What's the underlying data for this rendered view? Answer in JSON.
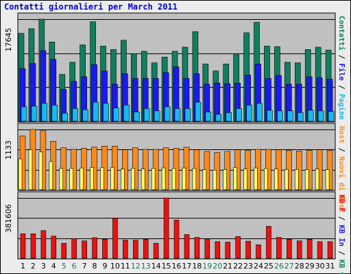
{
  "title": "Contatti giornalieri per March 2011",
  "chart_data": {
    "type": "bar",
    "categories": [
      "1",
      "2",
      "3",
      "4",
      "5",
      "6",
      "7",
      "8",
      "9",
      "10",
      "11",
      "12",
      "13",
      "14",
      "15",
      "16",
      "17",
      "18",
      "19",
      "20",
      "21",
      "22",
      "23",
      "24",
      "25",
      "26",
      "27",
      "28",
      "29",
      "30",
      "31"
    ],
    "weekend_days": [
      "5",
      "6",
      "12",
      "13",
      "19",
      "20",
      "26",
      "27"
    ],
    "colors": {
      "contatti": "#0f7f5f",
      "file": "#1a1aee",
      "pagine": "#19b8ef",
      "host": "#ff8a1a",
      "host_inner": "#ffff66",
      "kb": "#ee1111",
      "weekday_label": "#000000",
      "weekend_label": "#11774f",
      "slash": "#000000"
    },
    "panels": [
      {
        "id": "traffic",
        "ymax_label": "17645",
        "ymax": 17645,
        "right_labels": [
          {
            "text": "Contatti",
            "color": "#0f7f5f"
          },
          {
            "text": " / ",
            "color": "#000000"
          },
          {
            "text": "File",
            "color": "#1a1aee"
          },
          {
            "text": " / ",
            "color": "#000000"
          },
          {
            "text": "Pagine",
            "color": "#19b8ef"
          }
        ],
        "series": [
          {
            "name": "Contatti",
            "values": [
              15200,
              16000,
              17645,
              13700,
              8100,
              10200,
              13200,
              17200,
              13000,
              12400,
              14000,
              11700,
              12100,
              10100,
              11100,
              12100,
              12800,
              15500,
              9900,
              8700,
              9900,
              11500,
              15300,
              17100,
              13000,
              12900,
              10200,
              10100,
              12400,
              12800,
              12300
            ]
          },
          {
            "name": "File",
            "values": [
              9100,
              10000,
              12200,
              10700,
              5500,
              6900,
              7700,
              9800,
              8700,
              6400,
              8200,
              7400,
              7400,
              7400,
              8400,
              9400,
              7400,
              8200,
              6400,
              6600,
              6500,
              6600,
              8000,
              9900,
              7400,
              7900,
              6400,
              6400,
              7700,
              7500,
              7300
            ]
          },
          {
            "name": "Pagine",
            "values": [
              2500,
              2600,
              3100,
              2800,
              1400,
              2200,
              2000,
              3300,
              3100,
              2300,
              2800,
              1600,
              2200,
              1800,
              2500,
              2200,
              2200,
              3300,
              1600,
              1200,
              1500,
              2200,
              2800,
              3100,
              1900,
              1800,
              1800,
              1500,
              1900,
              1800,
              1700
            ]
          }
        ]
      },
      {
        "id": "host",
        "ymax_label": "1133",
        "ymax": 1133,
        "right_labels": [
          {
            "text": "Host",
            "color": "#ff8a1a"
          },
          {
            "text": " / ",
            "color": "#000000"
          },
          {
            "text": "Nuovi di Host",
            "color": "#ff8a1a"
          }
        ],
        "series": [
          {
            "name": "Host",
            "values": [
              1010,
              1133,
              1110,
              910,
              790,
              760,
              780,
              800,
              820,
              820,
              750,
              790,
              760,
              760,
              790,
              780,
              800,
              750,
              720,
              700,
              720,
              750,
              740,
              760,
              760,
              750,
              740,
              730,
              740,
              750,
              740
            ]
          },
          {
            "name": "Nuovi di Host",
            "values": [
              580,
              750,
              710,
              530,
              400,
              400,
              410,
              420,
              420,
              420,
              390,
              400,
              390,
              400,
              410,
              400,
              410,
              400,
              380,
              370,
              380,
              420,
              390,
              410,
              400,
              390,
              380,
              380,
              380,
              390,
              380
            ]
          }
        ]
      },
      {
        "id": "kb",
        "ymax_label": "381606",
        "ymax": 381606,
        "right_labels": [
          {
            "text": "KB F",
            "color": "#ee1111"
          },
          {
            "text": " / ",
            "color": "#000000"
          },
          {
            "text": "KB In",
            "color": "#1a1aee"
          },
          {
            "text": " / ",
            "color": "#000000"
          },
          {
            "text": "KB Out",
            "color": "#0f7f5f"
          }
        ],
        "series": [
          {
            "name": "KB F",
            "values": [
              155000,
              155000,
              175000,
              140000,
              95000,
              125000,
              110000,
              130000,
              120000,
              253000,
              115000,
              115000,
              120000,
              95000,
              381606,
              242000,
              150000,
              132000,
              122000,
              105000,
              102000,
              138000,
              108000,
              85000,
              202000,
              132000,
              120000,
              110000,
              120000,
              105000,
              105000
            ]
          }
        ]
      }
    ]
  }
}
